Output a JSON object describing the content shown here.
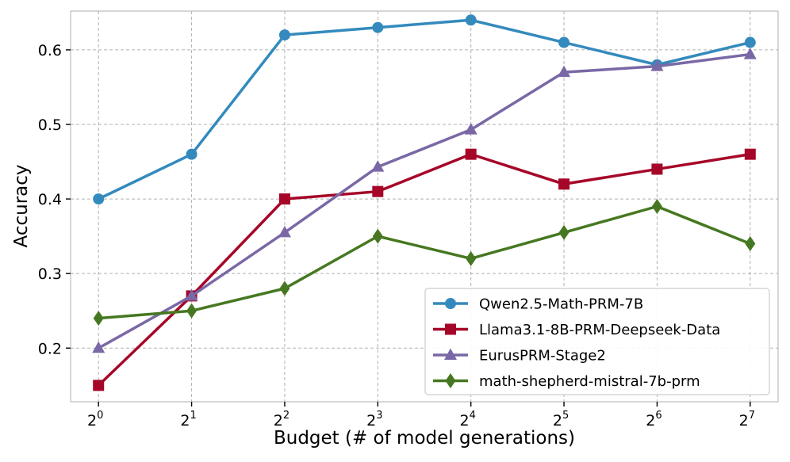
{
  "chart_data": {
    "type": "line",
    "title": "",
    "xlabel": "Budget (# of model generations)",
    "ylabel": "Accuracy",
    "x_base": "2",
    "x_exponents": [
      "0",
      "1",
      "2",
      "3",
      "4",
      "5",
      "6",
      "7"
    ],
    "x": [
      0,
      1,
      2,
      3,
      4,
      5,
      6,
      7
    ],
    "xlim": [
      -0.3,
      7.3
    ],
    "ylim": [
      0.128,
      0.652
    ],
    "yticks": [
      0.2,
      0.3,
      0.4,
      0.5,
      0.6
    ],
    "ytick_labels": [
      "0.2",
      "0.3",
      "0.4",
      "0.5",
      "0.6"
    ],
    "grid": true,
    "legend_position": "lower-right",
    "series": [
      {
        "name": "Qwen2.5-Math-PRM-7B",
        "color": "#348abd",
        "marker": "circle",
        "values": [
          0.4,
          0.46,
          0.62,
          0.63,
          0.64,
          0.61,
          0.58,
          0.61
        ]
      },
      {
        "name": "Llama3.1-8B-PRM-Deepseek-Data",
        "color": "#a60628",
        "marker": "square",
        "values": [
          0.15,
          0.27,
          0.4,
          0.41,
          0.46,
          0.42,
          0.44,
          0.46
        ]
      },
      {
        "name": "EurusPRM-Stage2",
        "color": "#7a68a6",
        "marker": "triangle",
        "values": [
          0.2,
          0.27,
          0.355,
          0.443,
          0.493,
          0.57,
          0.578,
          0.594
        ]
      },
      {
        "name": "math-shepherd-mistral-7b-prm",
        "color": "#467821",
        "marker": "diamond",
        "values": [
          0.24,
          0.25,
          0.28,
          0.35,
          0.32,
          0.355,
          0.39,
          0.34
        ]
      }
    ]
  }
}
